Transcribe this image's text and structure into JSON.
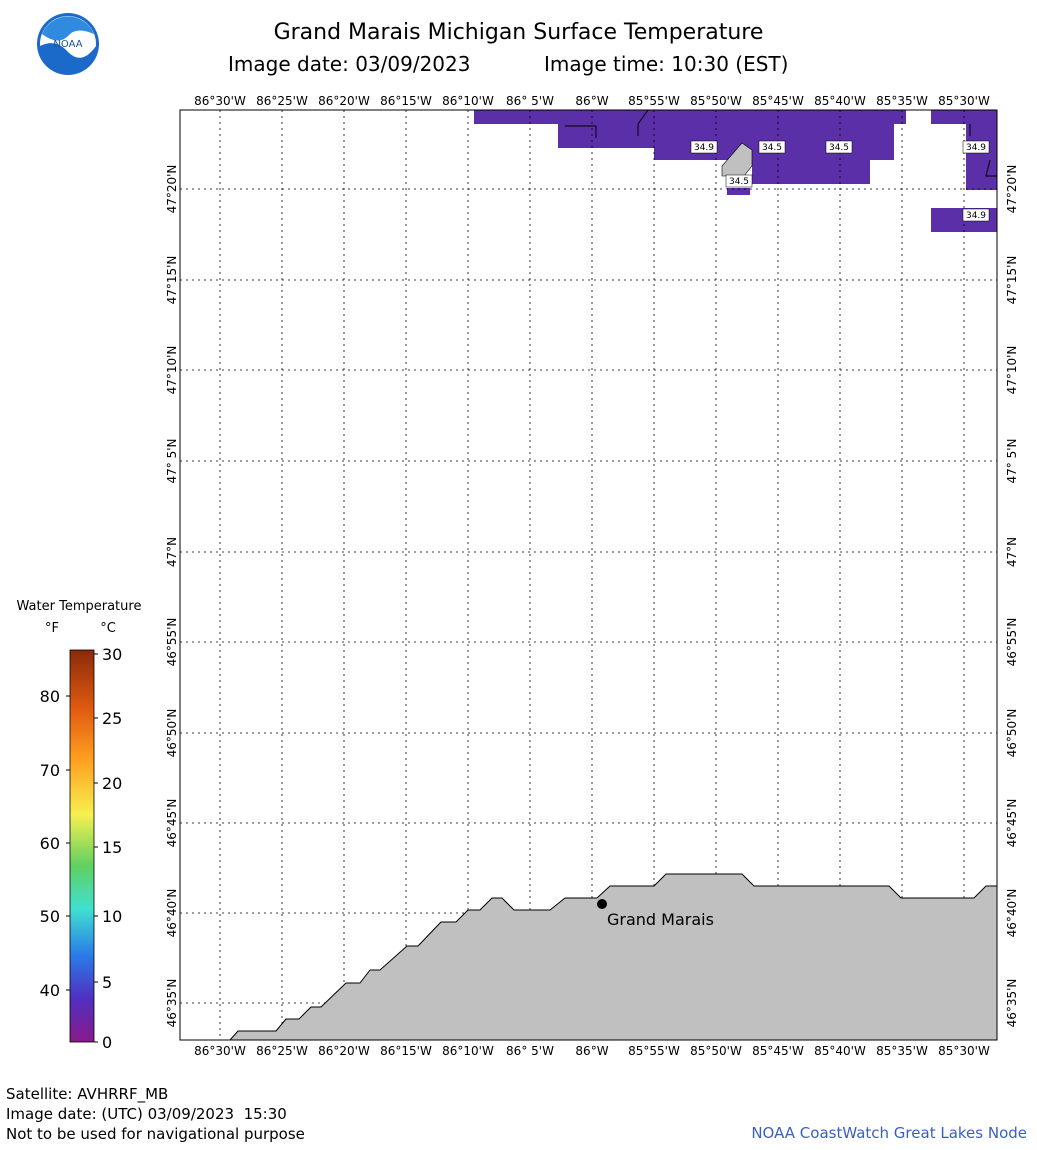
{
  "header": {
    "title": "Grand Marais Michigan Surface Temperature",
    "image_date": "Image date: 03/09/2023",
    "image_time": "Image time: 10:30 (EST)"
  },
  "legend": {
    "title": "Water Temperature",
    "unit_f": "°F",
    "unit_c": "°C",
    "f_ticks": [
      "80",
      "70",
      "60",
      "50",
      "40"
    ],
    "c_ticks": [
      "30",
      "25",
      "20",
      "15",
      "10",
      "5",
      "0"
    ]
  },
  "map": {
    "lon_labels": [
      "86°30'W",
      "86°25'W",
      "86°20'W",
      "86°15'W",
      "86°10'W",
      "86° 5'W",
      "86°W",
      "85°55'W",
      "85°50'W",
      "85°45'W",
      "85°40'W",
      "85°35'W",
      "85°30'W"
    ],
    "lat_labels": [
      "47°20'N",
      "47°15'N",
      "47°10'N",
      "47° 5'N",
      "47°N",
      "46°55'N",
      "46°50'N",
      "46°45'N",
      "46°40'N",
      "46°35'N"
    ],
    "place_label": "Grand Marais",
    "temp_labels": [
      "34.9",
      "34.5",
      "34.5",
      "34.5",
      "34.9",
      "34.9"
    ],
    "water_color": "#5a2fa8",
    "land_color": "#c0c0c0"
  },
  "footer": {
    "satellite": "Satellite: AVHRRF_MB",
    "utc_date": "Image date: (UTC) 03/09/2023  15:30",
    "disclaimer": "Not to be used for navigational purpose",
    "credit": "NOAA CoastWatch Great Lakes Node"
  }
}
